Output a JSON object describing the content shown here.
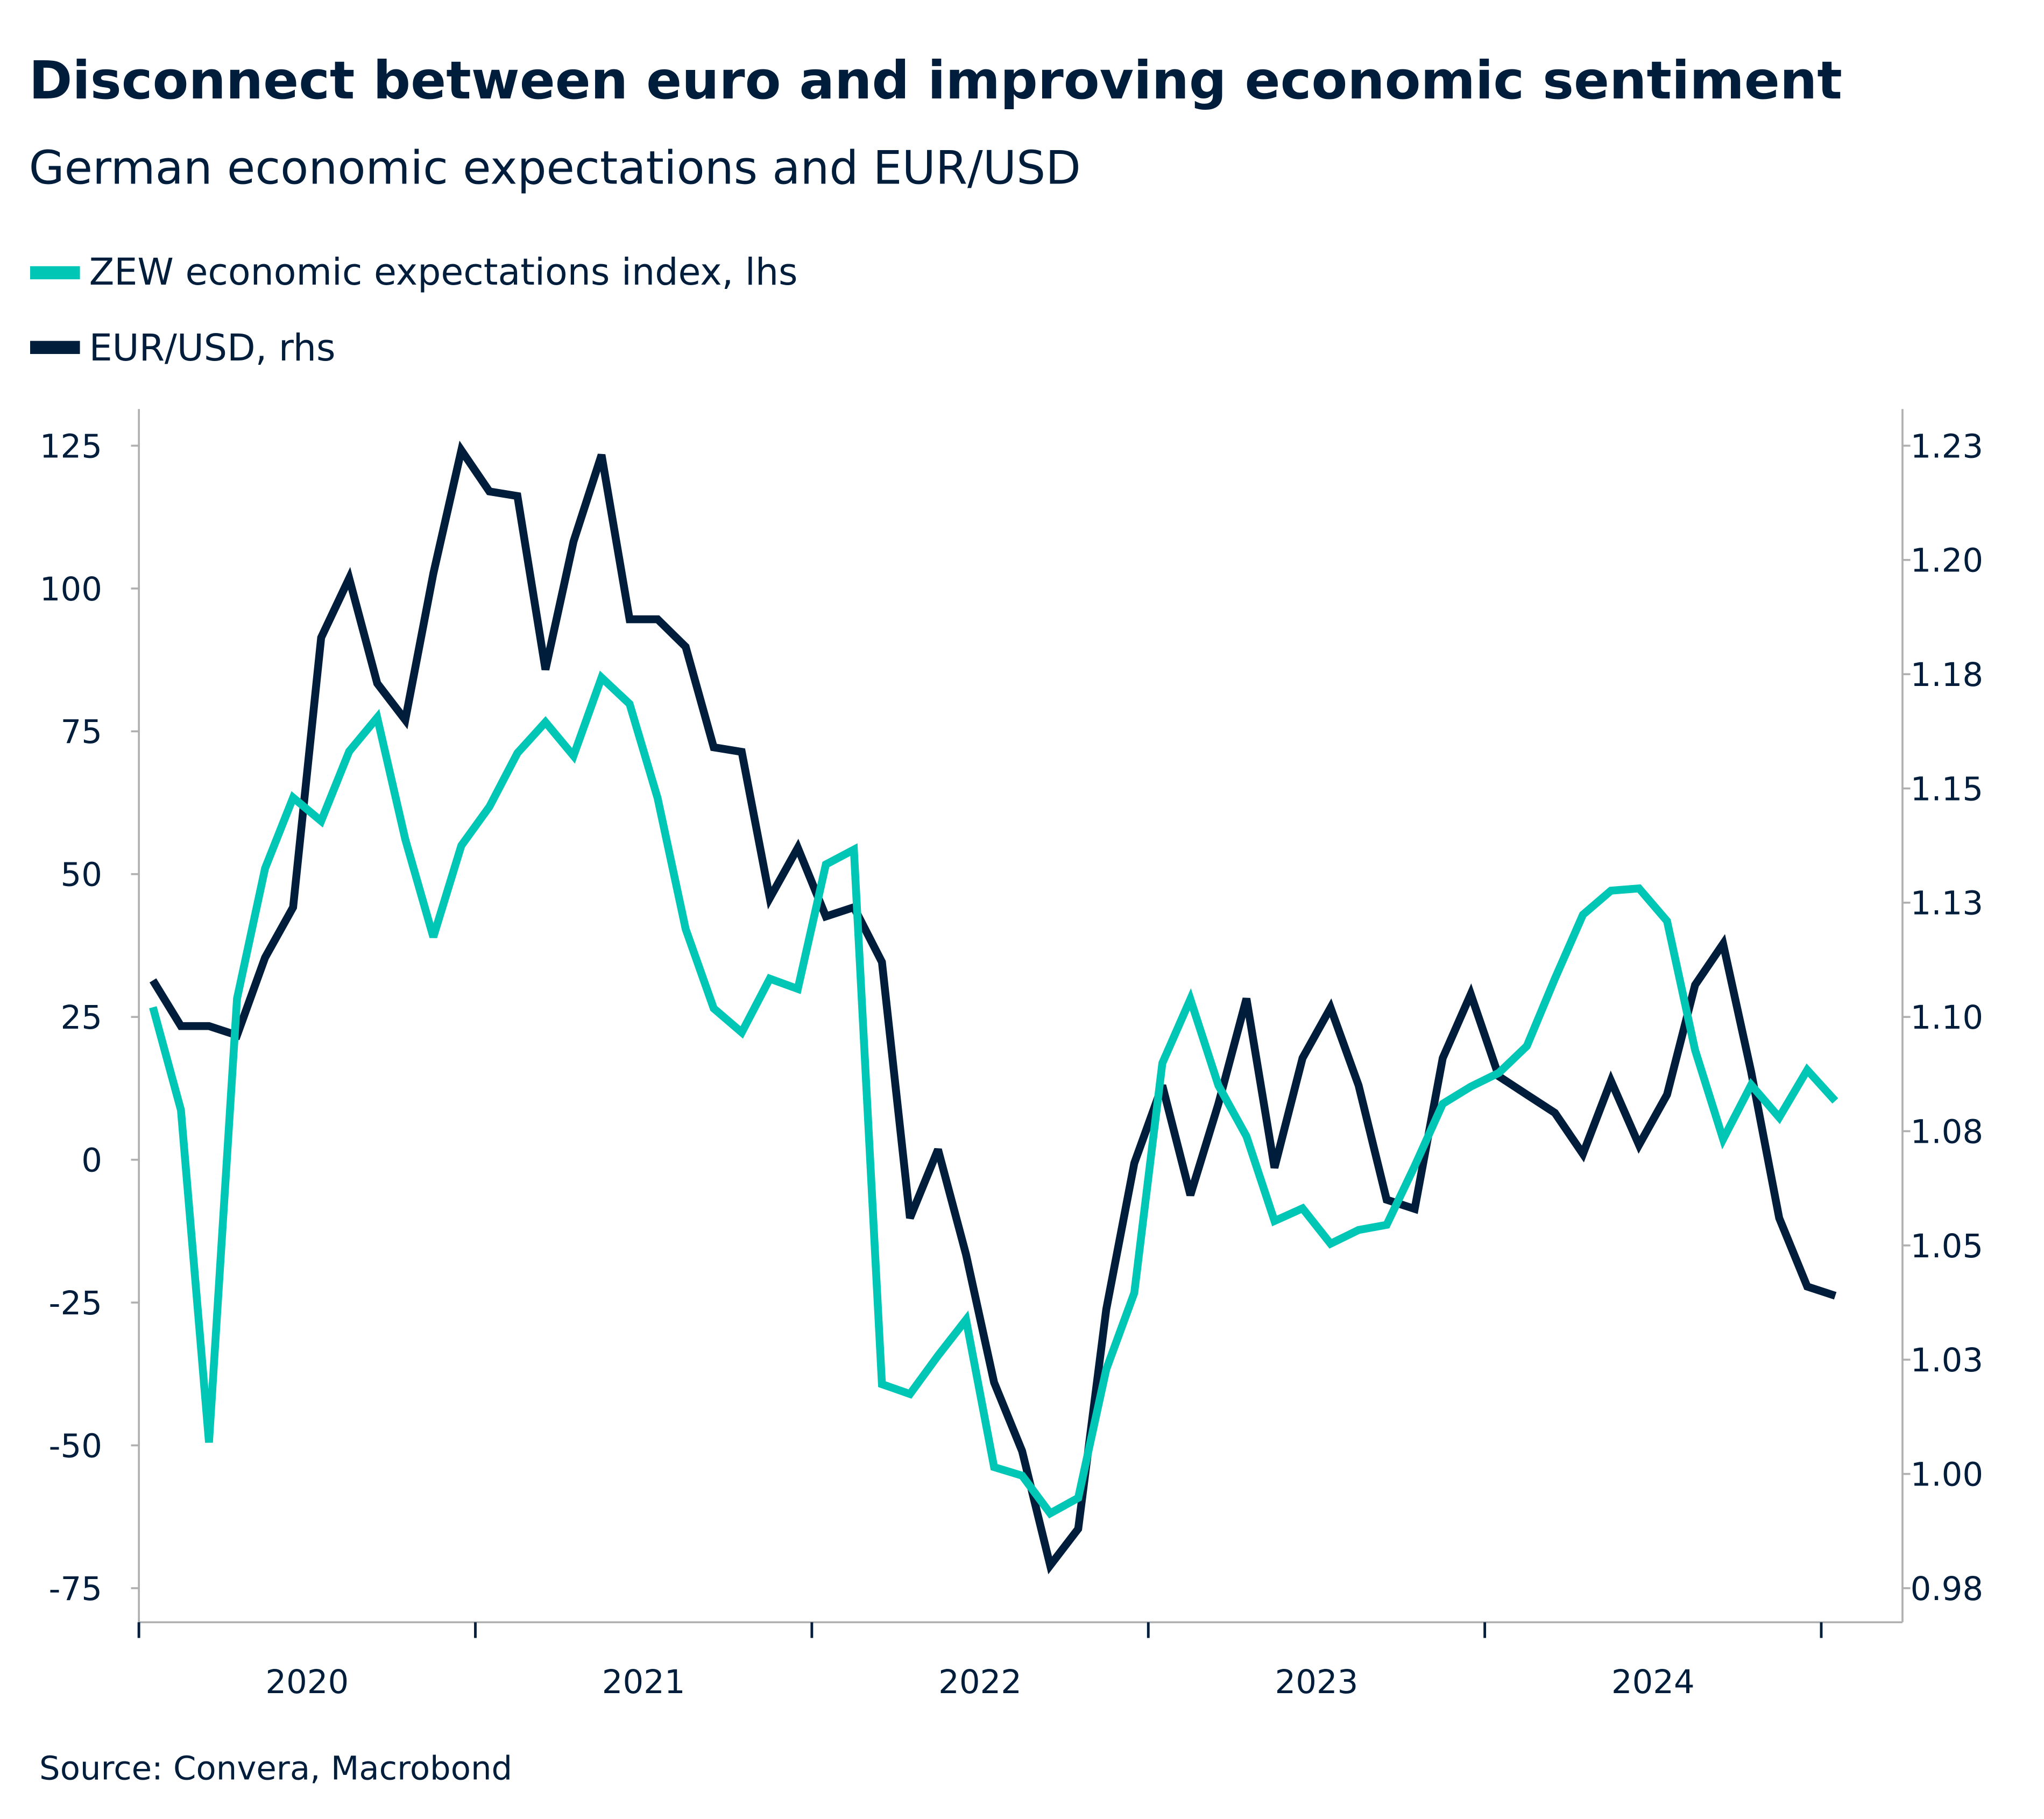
{
  "chart_data": {
    "type": "line",
    "title": "Disconnect between euro and improving economic sentiment",
    "subtitle": "German economic expectations and EUR/USD",
    "source": "Source: Convera, Macrobond",
    "colors": {
      "zew": "#00C7B5",
      "eurusd": "#001E3C",
      "axis": "#B0B0B0"
    },
    "legend_placement": "top-left",
    "grid": false,
    "x_start": "2020-01",
    "x_frequency": "monthly",
    "x_tick_labels": [
      "2020",
      "2021",
      "2022",
      "2023",
      "2024"
    ],
    "y_left": {
      "range": [
        -75,
        125
      ],
      "tick_labels": [
        "125",
        "100",
        "75",
        "50",
        "25",
        "0",
        "-25",
        "-50",
        "-75"
      ],
      "tick_values": [
        125,
        100,
        75,
        50,
        25,
        0,
        -25,
        -50,
        -75
      ]
    },
    "y_right": {
      "range": [
        0.975,
        1.225
      ],
      "tick_labels": [
        "1.23",
        "1.20",
        "1.18",
        "1.15",
        "1.13",
        "1.10",
        "1.08",
        "1.05",
        "1.03",
        "1.00",
        "0.98"
      ],
      "tick_values": [
        1.225,
        1.2,
        1.175,
        1.15,
        1.125,
        1.1,
        1.075,
        1.05,
        1.025,
        1.0,
        0.975
      ]
    },
    "series": [
      {
        "name": "ZEW economic expectations index, lhs",
        "axis": "left",
        "values": [
          26.7,
          8.7,
          -49.5,
          28.2,
          51.0,
          63.4,
          59.3,
          71.5,
          77.4,
          56.1,
          39.0,
          55.0,
          61.8,
          71.2,
          76.6,
          70.7,
          84.4,
          79.8,
          63.3,
          40.4,
          26.5,
          22.3,
          31.7,
          29.9,
          51.7,
          54.3,
          -39.3,
          -41.0,
          -34.3,
          -28.0,
          -53.8,
          -55.3,
          -61.9,
          -59.2,
          -36.7,
          -23.3,
          16.9,
          28.1,
          13.0,
          4.1,
          -10.7,
          -8.5,
          -14.7,
          -12.3,
          -11.4,
          -1.1,
          9.8,
          12.8,
          15.2,
          19.9,
          31.7,
          42.9,
          47.1,
          47.5,
          41.8,
          19.2,
          3.6,
          13.1,
          7.4,
          15.7,
          10.3
        ]
      },
      {
        "name": "EUR/USD, rhs",
        "axis": "right",
        "values": [
          1.108,
          1.098,
          1.098,
          1.096,
          1.113,
          1.124,
          1.183,
          1.196,
          1.173,
          1.165,
          1.197,
          1.224,
          1.215,
          1.214,
          1.176,
          1.204,
          1.223,
          1.187,
          1.187,
          1.181,
          1.159,
          1.158,
          1.126,
          1.137,
          1.122,
          1.124,
          1.112,
          1.056,
          1.071,
          1.048,
          1.02,
          1.005,
          0.98,
          0.988,
          1.036,
          1.068,
          1.085,
          1.061,
          1.081,
          1.104,
          1.067,
          1.091,
          1.102,
          1.085,
          1.06,
          1.058,
          1.091,
          1.105,
          1.087,
          1.083,
          1.079,
          1.07,
          1.086,
          1.072,
          1.083,
          1.107,
          1.116,
          1.088,
          1.056,
          1.041,
          1.039
        ]
      }
    ]
  }
}
